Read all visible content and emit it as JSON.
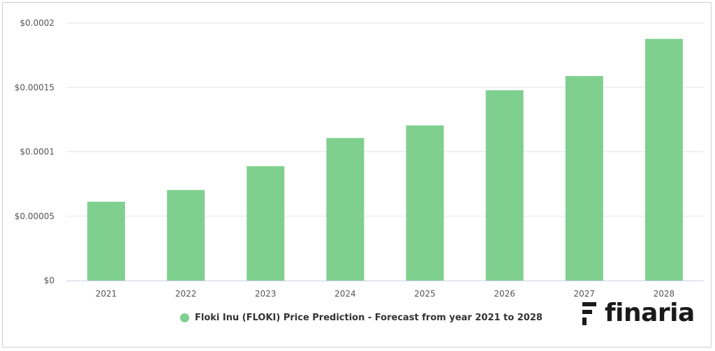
{
  "chart_data": {
    "type": "bar",
    "categories": [
      "2021",
      "2022",
      "2023",
      "2024",
      "2025",
      "2026",
      "2027",
      "2028"
    ],
    "series": [
      {
        "name": "Floki Inu (FLOKI) Price Prediction - Forecast from year 2021 to 2028",
        "values": [
          6.12e-05,
          7.03e-05,
          8.88e-05,
          0.0001107,
          0.0001205,
          0.0001478,
          0.0001588,
          0.0001877
        ],
        "color": "#7fd08e"
      }
    ],
    "yticks": [
      "$0",
      "$0.00005",
      "$0.0001",
      "$0.00015",
      "$0.0002"
    ],
    "ytick_values": [
      0,
      5e-05,
      0.0001,
      0.00015,
      0.0002
    ],
    "ylim": [
      0,
      0.0002
    ],
    "grid": true,
    "legend_position": "bottom"
  },
  "brand": {
    "name": "finaria",
    "icon": "finaria-logo-icon"
  }
}
